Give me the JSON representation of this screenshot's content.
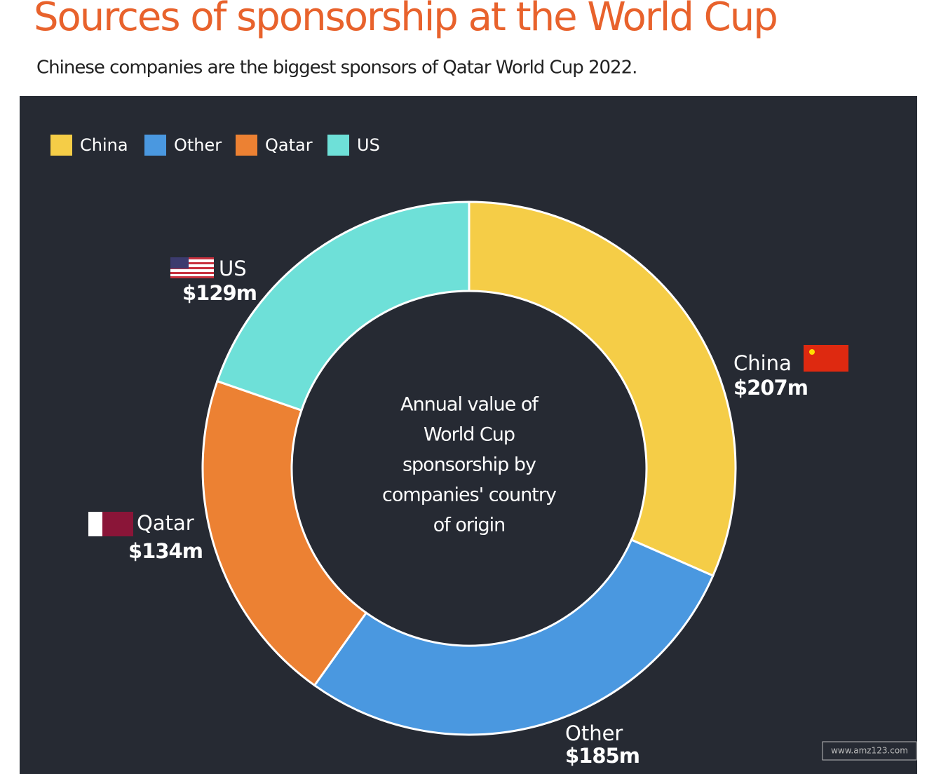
{
  "chart_data": {
    "type": "donut",
    "title": "Sources of sponsorship at the World Cup",
    "subtitle": "Chinese companies are the biggest sponsors of Qatar World Cup 2022.",
    "center_text": [
      "Annual value of",
      "World Cup",
      "sponsorship by",
      "companies' country",
      "of origin"
    ],
    "categories": [
      "China",
      "Other",
      "Qatar",
      "US"
    ],
    "values": [
      207,
      185,
      134,
      129
    ],
    "value_labels": [
      "$207m",
      "$185m",
      "$134m",
      "$129m"
    ],
    "colors": [
      "#f5cd47",
      "#4a98e0",
      "#ec8133",
      "#6ee0d8"
    ],
    "legend": "top-left"
  },
  "watermark": "www.amz123.com"
}
